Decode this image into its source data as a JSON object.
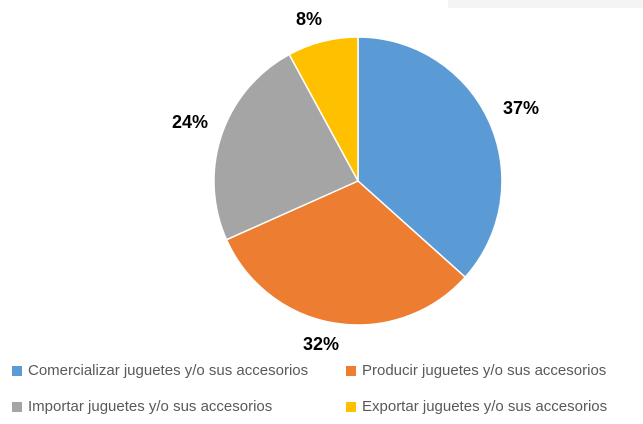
{
  "chart_data": {
    "type": "pie",
    "title": "",
    "slices": [
      {
        "label": "Comercializar juguetes y/o sus accesorios",
        "value": 37,
        "display": "37%",
        "color": "#5B9BD5"
      },
      {
        "label": "Producir juguetes y/o sus accesorios",
        "value": 32,
        "display": "32%",
        "color": "#ED7D31"
      },
      {
        "label": "Importar juguetes y/o sus accesorios",
        "value": 24,
        "display": "24%",
        "color": "#A5A5A5"
      },
      {
        "label": "Exportar juguetes y/o sus accesorios",
        "value": 8,
        "display": "8%",
        "color": "#FFC000"
      }
    ],
    "legend_position": "bottom",
    "start_angle_deg": 0,
    "direction": "clockwise"
  }
}
